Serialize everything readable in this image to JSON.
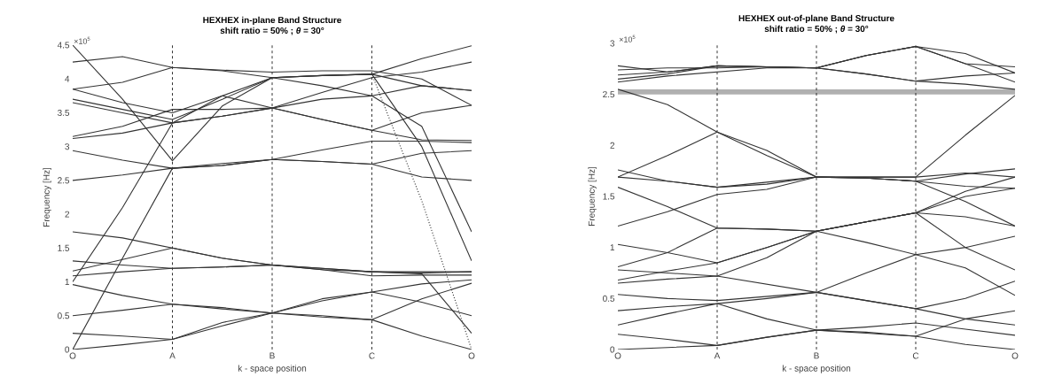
{
  "chart_data": [
    {
      "type": "line",
      "title": "HEXHEX in-plane Band Structure",
      "subtitle": "shift ratio = 50%  ;  *θ* = 30°",
      "xlabel": "k - space position",
      "ylabel": "Frequency [Hz]",
      "annotations": [
        "×10$^{5}$"
      ],
      "marker": "none",
      "line_style": "solid",
      "ylim": [
        0,
        4.5
      ],
      "categories": [
        "O",
        null,
        "A",
        null,
        "B",
        null,
        "C",
        null,
        "O"
      ],
      "yticks": [
        0,
        0.5,
        1,
        1.5,
        2,
        2.5,
        3,
        3.5,
        4,
        4.5
      ],
      "ref_lines": [
        {
          "axis": "x",
          "value": "A",
          "color": "#000000",
          "line_style": "dashed"
        },
        {
          "axis": "x",
          "value": "B",
          "color": "#000000",
          "line_style": "dashed"
        },
        {
          "axis": "x",
          "value": "C",
          "color": "#000000",
          "line_style": "dashed"
        }
      ],
      "series": [
        {
          "color": "#333333",
          "values": [
            0,
            0.07,
            0.15,
            0.4,
            0.54,
            0.48,
            0.44,
            0.2,
            0
          ]
        },
        {
          "color": "#333333",
          "values": [
            0.24,
            0.2,
            0.15,
            0.35,
            0.54,
            0.75,
            0.85,
            0.7,
            0.5
          ]
        },
        {
          "color": "#333333",
          "values": [
            0.5,
            0.58,
            0.67,
            0.62,
            0.54,
            0.5,
            0.44,
            0.75,
            0.98
          ]
        },
        {
          "color": "#333333",
          "values": [
            0.96,
            0.8,
            0.67,
            0.6,
            0.54,
            0.72,
            0.85,
            0.97,
            1.03
          ]
        },
        {
          "color": "#333333",
          "values": [
            1.09,
            1.15,
            1.2,
            1.22,
            1.25,
            1.18,
            1.09,
            1.1,
            1.1
          ]
        },
        {
          "color": "#333333",
          "values": [
            1.16,
            1.33,
            1.5,
            1.35,
            1.25,
            1.18,
            1.15,
            1.13,
            1.15
          ]
        },
        {
          "color": "#333333",
          "values": [
            1.31,
            1.25,
            1.2,
            1.22,
            1.25,
            1.2,
            1.15,
            1.12,
            0.24
          ]
        },
        {
          "color": "#333333",
          "values": [
            1.74,
            1.65,
            1.5,
            1.35,
            1.25,
            1.2,
            1.15,
            1.15,
            1.15
          ]
        },
        {
          "color": "#333333",
          "values": [
            1.0,
            2.1,
            3.35,
            3.75,
            3.57,
            3.4,
            3.24,
            3.1,
            3.09
          ]
        },
        {
          "color": "#333333",
          "values": [
            0,
            1.35,
            2.68,
            2.72,
            2.81,
            2.78,
            2.74,
            2.55,
            2.5
          ]
        },
        {
          "color": "#333333",
          "values": [
            2.5,
            2.58,
            2.68,
            2.75,
            2.81,
            2.95,
            3.08,
            3.08,
            3.06
          ]
        },
        {
          "color": "#333333",
          "values": [
            2.94,
            2.8,
            2.68,
            2.72,
            2.81,
            2.78,
            2.74,
            2.9,
            2.94
          ]
        },
        {
          "color": "#333333",
          "values": [
            3.12,
            3.2,
            3.35,
            3.45,
            3.57,
            3.7,
            3.75,
            3.3,
            1.74
          ]
        },
        {
          "color": "#333333",
          "values": [
            3.15,
            3.3,
            3.55,
            3.55,
            3.57,
            3.4,
            3.24,
            3.5,
            3.61
          ]
        },
        {
          "color": "#333333",
          "values": [
            3.65,
            3.5,
            3.35,
            3.45,
            3.57,
            3.8,
            4.02,
            4.1,
            4.25
          ]
        },
        {
          "color": "#333333",
          "values": [
            3.7,
            3.55,
            3.4,
            3.7,
            4.02,
            4.05,
            4.07,
            3.9,
            3.83
          ]
        },
        {
          "color": "#333333",
          "values": [
            3.85,
            3.65,
            3.5,
            3.75,
            4.02,
            4.05,
            4.07,
            3.0,
            1.31
          ]
        },
        {
          "color": "#333333",
          "values": [
            3.85,
            3.95,
            4.17,
            4.12,
            4.02,
            4.05,
            4.07,
            4.3,
            4.49
          ]
        },
        {
          "color": "#333333",
          "values": [
            4.25,
            4.33,
            4.17,
            4.13,
            4.1,
            4.12,
            4.12,
            4.0,
            3.61
          ]
        },
        {
          "color": "#333333",
          "values": [
            4.5,
            3.7,
            2.79,
            3.6,
            4.02,
            3.9,
            3.75,
            3.9,
            3.83
          ]
        },
        {
          "color": "#333333",
          "line_style": "dotted",
          "values": [
            null,
            null,
            null,
            null,
            null,
            null,
            4.07,
            2.2,
            0
          ]
        }
      ]
    },
    {
      "type": "line",
      "title": "HEXHEX out-of-plane Band Structure",
      "subtitle": "shift ratio = 50%  ;  *θ* = 30°",
      "xlabel": "k - space position",
      "ylabel": "Frequency [Hz]",
      "annotations": [
        "×10$^{5}$"
      ],
      "marker": "none",
      "line_style": "solid",
      "ylim": [
        0,
        3
      ],
      "categories": [
        "O",
        null,
        "A",
        null,
        "B",
        null,
        "C",
        null,
        "O"
      ],
      "yticks": [
        0,
        0.5,
        1,
        1.5,
        2,
        2.5,
        3
      ],
      "ref_lines": [
        {
          "axis": "x",
          "value": "A",
          "color": "#000000",
          "line_style": "dashed"
        },
        {
          "axis": "x",
          "value": "B",
          "color": "#000000",
          "line_style": "dashed"
        },
        {
          "axis": "x",
          "value": "C",
          "color": "#000000",
          "line_style": "dashed"
        }
      ],
      "bands": [
        {
          "axis": "y",
          "from": 2.5,
          "to": 2.55,
          "color": "#b0b0b0"
        }
      ],
      "series": [
        {
          "color": "#333333",
          "values": [
            0,
            0.02,
            0.04,
            0.12,
            0.19,
            0.16,
            0.13,
            0.05,
            0
          ]
        },
        {
          "color": "#333333",
          "values": [
            0.15,
            0.1,
            0.04,
            0.12,
            0.19,
            0.22,
            0.26,
            0.2,
            0.14
          ]
        },
        {
          "color": "#333333",
          "values": [
            0.24,
            0.35,
            0.45,
            0.3,
            0.19,
            0.17,
            0.13,
            0.3,
            0.38
          ]
        },
        {
          "color": "#333333",
          "values": [
            0.38,
            0.42,
            0.45,
            0.5,
            0.56,
            0.48,
            0.4,
            0.3,
            0.24
          ]
        },
        {
          "color": "#333333",
          "values": [
            0.54,
            0.5,
            0.48,
            0.52,
            0.56,
            0.75,
            0.93,
            0.8,
            0.53
          ]
        },
        {
          "color": "#333333",
          "values": [
            0.65,
            0.69,
            0.72,
            0.64,
            0.56,
            0.48,
            0.4,
            0.5,
            0.67
          ]
        },
        {
          "color": "#333333",
          "values": [
            0.68,
            0.77,
            0.85,
            1.0,
            1.16,
            1.25,
            1.34,
            1.0,
            0.78
          ]
        },
        {
          "color": "#333333",
          "values": [
            0.78,
            0.75,
            0.72,
            0.9,
            1.16,
            1.05,
            0.93,
            1.0,
            1.11
          ]
        },
        {
          "color": "#333333",
          "values": [
            0.81,
            0.95,
            1.19,
            1.18,
            1.16,
            1.25,
            1.34,
            1.3,
            1.21
          ]
        },
        {
          "color": "#333333",
          "values": [
            1.03,
            0.95,
            0.85,
            1.0,
            1.16,
            1.25,
            1.34,
            1.5,
            1.58
          ]
        },
        {
          "color": "#333333",
          "values": [
            1.21,
            1.35,
            1.52,
            1.57,
            1.69,
            1.68,
            1.65,
            1.45,
            1.21
          ]
        },
        {
          "color": "#333333",
          "values": [
            1.59,
            1.4,
            1.19,
            1.18,
            1.16,
            1.25,
            1.34,
            1.55,
            1.69
          ]
        },
        {
          "color": "#333333",
          "values": [
            1.69,
            1.65,
            1.59,
            1.64,
            1.69,
            1.68,
            1.65,
            1.72,
            1.77
          ]
        },
        {
          "color": "#333333",
          "values": [
            1.76,
            1.65,
            1.59,
            1.62,
            1.69,
            1.69,
            1.69,
            1.73,
            1.69
          ]
        },
        {
          "color": "#333333",
          "values": [
            2.55,
            2.4,
            2.13,
            1.95,
            1.69,
            1.69,
            1.69,
            2.1,
            2.49
          ]
        },
        {
          "color": "#333333",
          "values": [
            1.69,
            1.9,
            2.13,
            1.9,
            1.69,
            1.68,
            1.65,
            1.6,
            1.58
          ]
        },
        {
          "color": "#333333",
          "values": [
            2.62,
            2.68,
            2.72,
            2.76,
            2.76,
            2.7,
            2.63,
            2.6,
            2.55
          ]
        },
        {
          "color": "#333333",
          "values": [
            2.65,
            2.7,
            2.78,
            2.77,
            2.76,
            2.7,
            2.63,
            2.68,
            2.71
          ]
        },
        {
          "color": "#333333",
          "values": [
            2.69,
            2.72,
            2.78,
            2.77,
            2.76,
            2.88,
            2.97,
            2.8,
            2.62
          ]
        },
        {
          "color": "#333333",
          "values": [
            2.74,
            2.76,
            2.76,
            2.77,
            2.76,
            2.88,
            2.97,
            2.8,
            2.77
          ]
        },
        {
          "color": "#333333",
          "values": [
            2.78,
            2.72,
            2.78,
            2.77,
            2.76,
            2.88,
            2.97,
            2.9,
            2.71
          ]
        }
      ]
    }
  ]
}
